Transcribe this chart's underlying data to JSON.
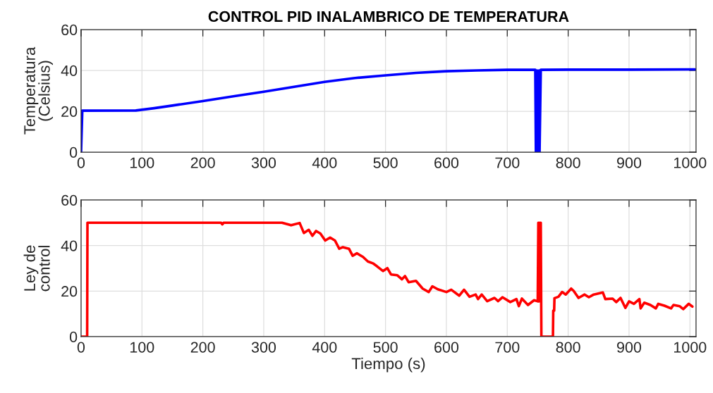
{
  "chart_data": [
    {
      "type": "line",
      "title": "CONTROL PID INALAMBRICO DE TEMPERATURA",
      "ylabel": "Temperatura\n(Celsius)",
      "xlim": [
        0,
        1010
      ],
      "xticks": [
        0,
        100,
        200,
        300,
        400,
        500,
        600,
        700,
        800,
        900,
        1000
      ],
      "ylim": [
        0,
        60
      ],
      "yticks": [
        0,
        20,
        40,
        60
      ],
      "grid": true,
      "series": [
        {
          "color": "#0000ff",
          "x": [
            0,
            2,
            90,
            120,
            150,
            200,
            250,
            300,
            350,
            400,
            450,
            500,
            550,
            600,
            650,
            700,
            746,
            747,
            749,
            750,
            752,
            753,
            755,
            800,
            900,
            1008
          ],
          "values": [
            0,
            20.3,
            20.4,
            21.5,
            22.8,
            25.0,
            27.3,
            29.6,
            32.0,
            34.4,
            36.3,
            37.6,
            38.8,
            39.6,
            40.0,
            40.3,
            40.3,
            0,
            40,
            0,
            40,
            0,
            40.3,
            40.4,
            40.4,
            40.5
          ]
        }
      ]
    },
    {
      "type": "line",
      "xlabel": "Tiempo (s)",
      "ylabel": "Ley de\ncontrol",
      "xlim": [
        0,
        1010
      ],
      "xticks": [
        0,
        100,
        200,
        300,
        400,
        500,
        600,
        700,
        800,
        900,
        1000
      ],
      "ylim": [
        0,
        60
      ],
      "yticks": [
        0,
        20,
        40,
        60
      ],
      "grid": true,
      "series": [
        {
          "color": "#ff0000",
          "x": [
            0,
            10,
            10.5,
            230,
            232,
            234,
            330,
            345,
            359,
            366,
            374,
            380,
            386,
            393,
            401,
            409,
            417,
            424,
            430,
            440,
            446,
            453,
            463,
            471,
            480,
            486,
            496,
            503,
            509,
            519,
            527,
            532,
            538,
            550,
            561,
            571,
            577,
            586,
            600,
            608,
            621,
            629,
            638,
            648,
            652,
            658,
            667,
            679,
            685,
            692,
            705,
            715,
            719,
            724,
            734,
            744,
            750,
            751,
            752,
            753,
            754,
            755,
            756,
            775,
            775.5,
            777,
            777.5,
            784,
            790,
            796,
            805,
            809,
            817,
            827,
            834,
            842,
            857,
            861,
            873,
            879,
            886,
            894,
            900,
            908,
            917,
            919,
            925,
            935,
            944,
            948,
            958,
            969,
            973,
            983,
            989,
            998,
            1004
          ],
          "values": [
            0,
            0,
            50,
            50,
            49.3,
            50,
            50,
            48.9,
            49.9,
            45.5,
            46.9,
            44.3,
            46.4,
            45.3,
            42.2,
            43.5,
            42.2,
            38.6,
            39.3,
            38.6,
            35.5,
            36.6,
            35.0,
            33.0,
            32.1,
            30.9,
            28.8,
            30.1,
            27.3,
            27.0,
            25.2,
            26.6,
            23.9,
            24.5,
            21.1,
            19.6,
            22.1,
            20.8,
            19.6,
            20.6,
            18.0,
            20.6,
            17.5,
            18.5,
            16.5,
            18.5,
            15.6,
            17.0,
            15.6,
            17.3,
            15.2,
            16.5,
            13.4,
            16.7,
            13.9,
            16.0,
            15.5,
            50,
            15.5,
            50,
            15.5,
            50,
            0,
            0,
            11.4,
            11.4,
            16.9,
            17.5,
            19.6,
            18.5,
            21.1,
            20.1,
            17.0,
            18.5,
            17.3,
            18.5,
            19.4,
            16.5,
            16.7,
            15.2,
            17.0,
            12.6,
            15.5,
            14.4,
            16.5,
            12.4,
            14.9,
            13.9,
            12.4,
            14.4,
            13.6,
            12.4,
            13.9,
            13.4,
            12.1,
            14.4,
            13.2
          ]
        }
      ]
    }
  ]
}
